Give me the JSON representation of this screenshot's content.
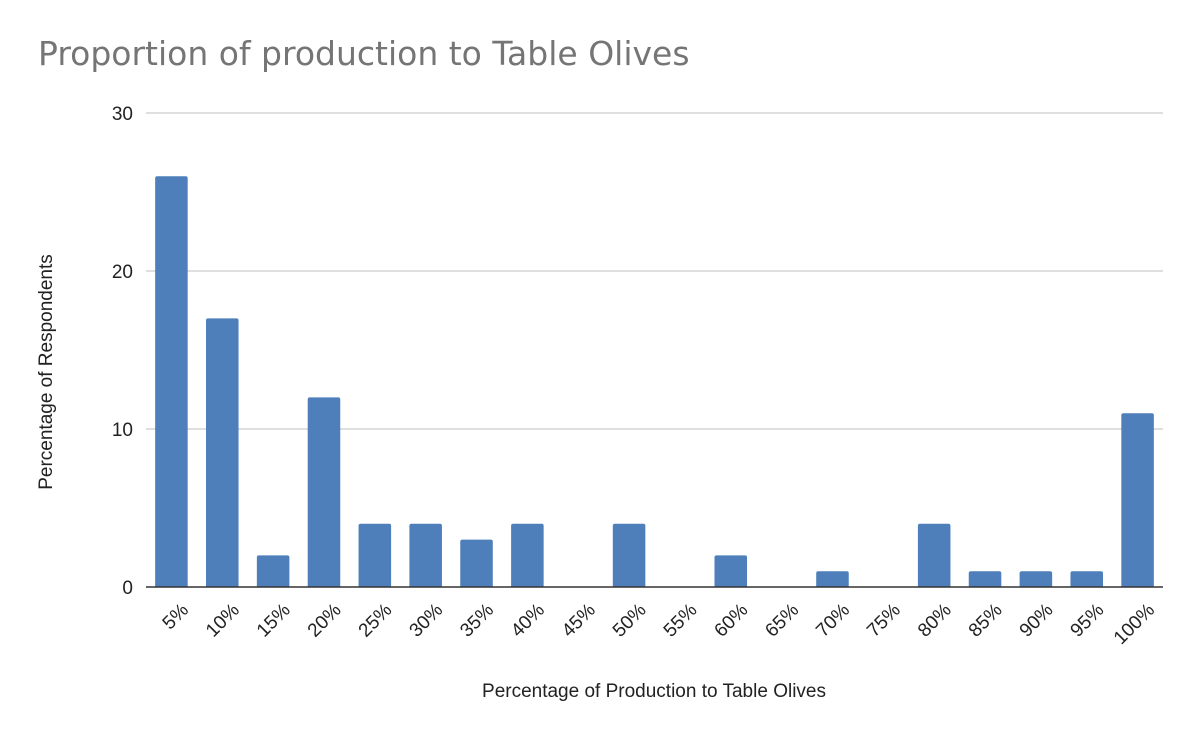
{
  "chart_data": {
    "type": "bar",
    "title": "Proportion of production to Table Olives",
    "xlabel": "Percentage of Production to Table Olives",
    "ylabel": "Percentage of Respondents",
    "categories": [
      "5%",
      "10%",
      "15%",
      "20%",
      "25%",
      "30%",
      "35%",
      "40%",
      "45%",
      "50%",
      "55%",
      "60%",
      "65%",
      "70%",
      "75%",
      "80%",
      "85%",
      "90%",
      "95%",
      "100%"
    ],
    "values": [
      26,
      17,
      2,
      12,
      4,
      4,
      3,
      4,
      0,
      4,
      0,
      2,
      0,
      1,
      0,
      4,
      1,
      1,
      1,
      11
    ],
    "ylim": [
      0,
      30
    ],
    "yticks": [
      0,
      10,
      20,
      30
    ],
    "grid": true,
    "legend": "none",
    "bar_color": "#4e7fbb"
  }
}
